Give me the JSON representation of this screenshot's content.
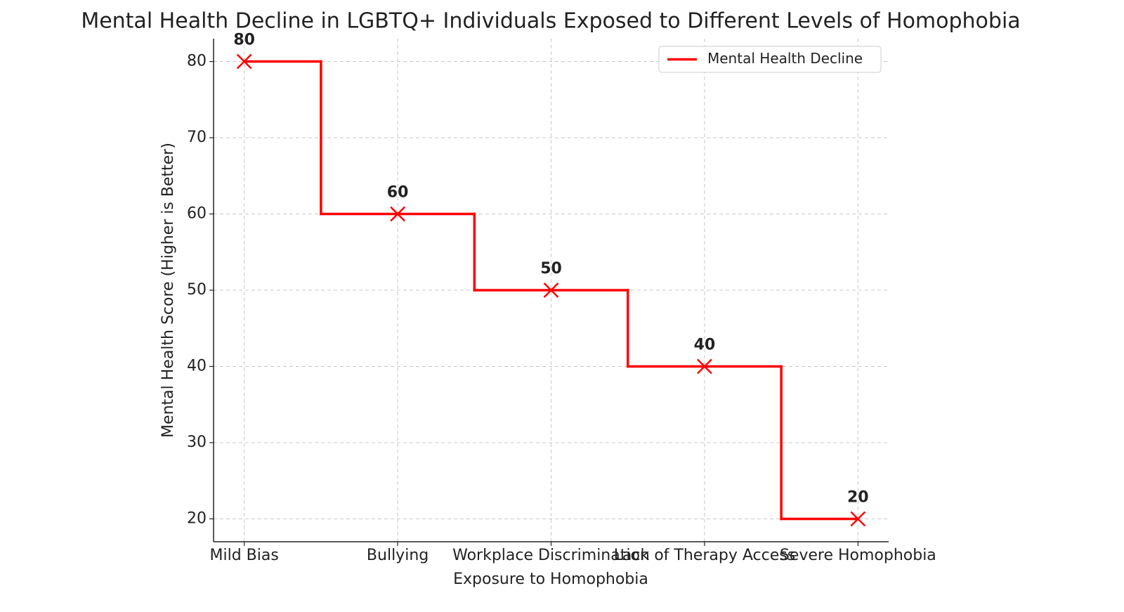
{
  "chart_data": {
    "type": "line",
    "drawstyle": "steps-mid",
    "title": "Mental Health Decline in LGBTQ+ Individuals Exposed to Different Levels of Homophobia",
    "x_label": "Exposure to Homophobia",
    "y_label": "Mental Health Score (Higher is Better)",
    "categories": [
      "Mild Bias",
      "Bullying",
      "Workplace Discrimination",
      "Lack of Therapy Access",
      "Severe Homophobia"
    ],
    "series": [
      {
        "name": "Mental Health Decline",
        "color": "#ff0000",
        "marker": "x",
        "values": [
          80,
          60,
          50,
          40,
          20
        ]
      }
    ],
    "ylim": [
      17,
      83
    ],
    "yticks": [
      20,
      30,
      40,
      50,
      60,
      70,
      80
    ],
    "grid": true,
    "legend": "upper right",
    "data_labels": true
  }
}
